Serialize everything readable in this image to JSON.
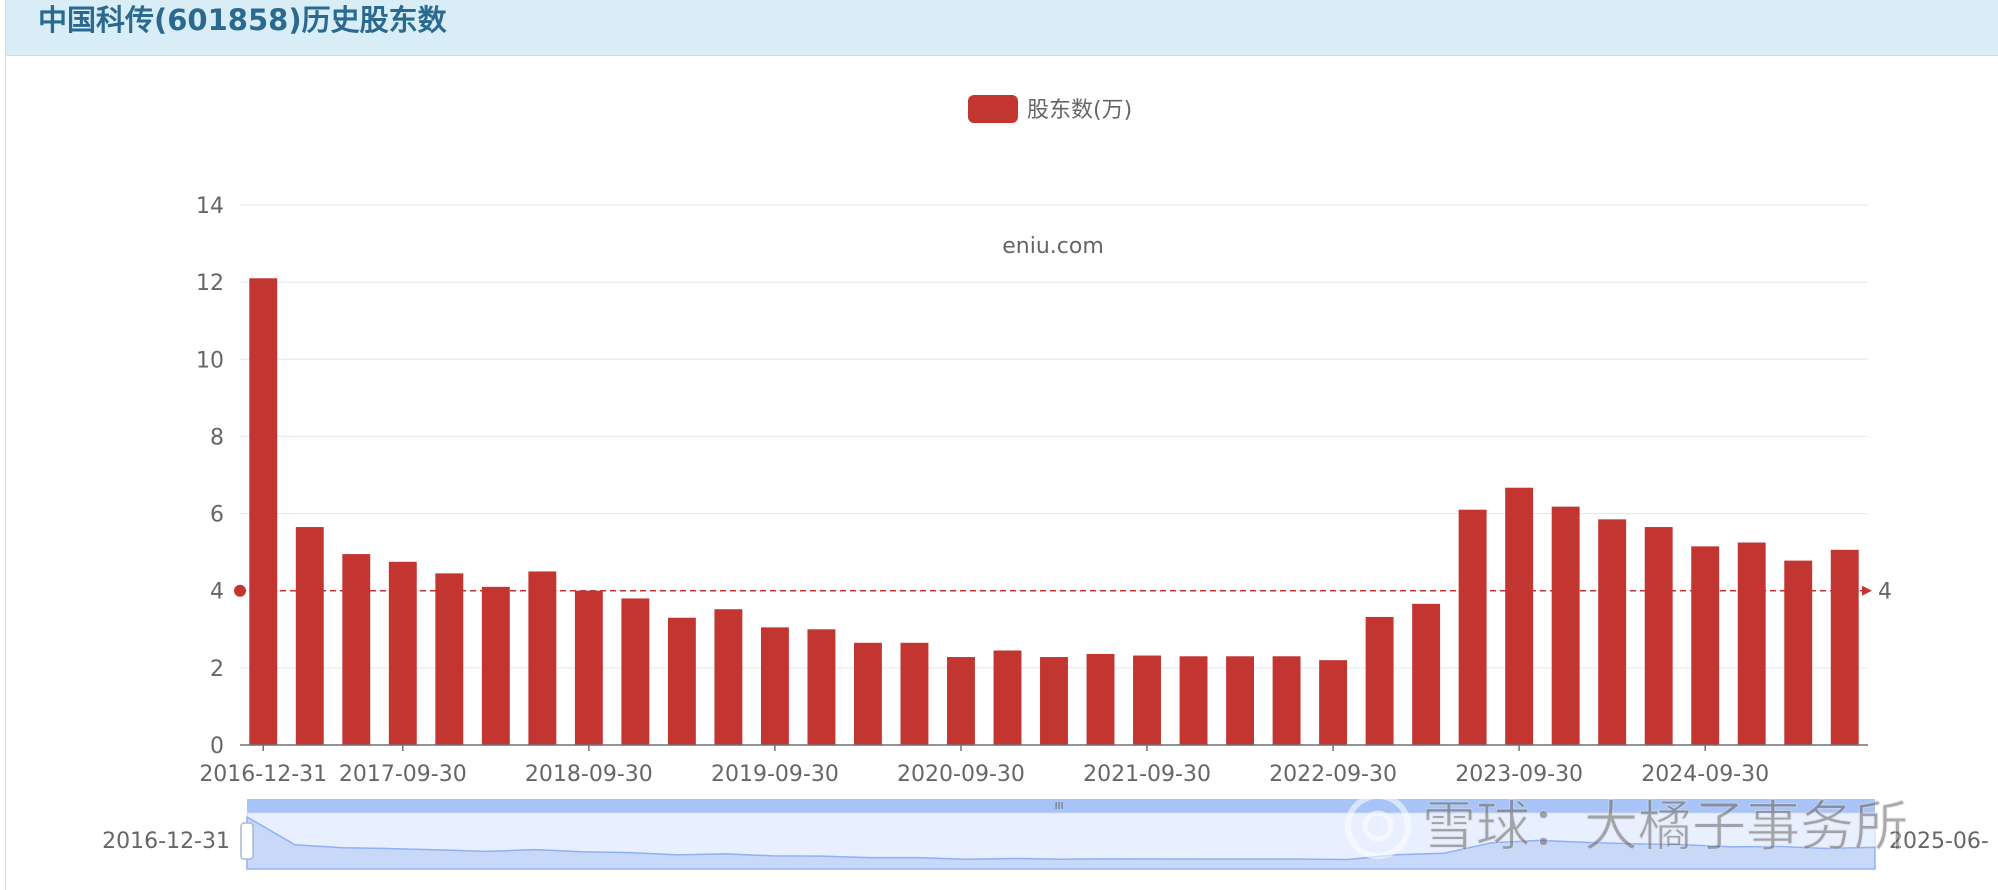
{
  "page": {
    "title": "中国科传(601858)历史股东数"
  },
  "chart_data": {
    "type": "bar",
    "legend": {
      "label": "股东数(万)",
      "color": "#c23531",
      "position": "top-center"
    },
    "watermark": "eniu.com",
    "categories": [
      "2016-12-31",
      "2017-03-31",
      "2017-06-30",
      "2017-09-30",
      "2017-12-31",
      "2018-03-31",
      "2018-06-30",
      "2018-09-30",
      "2018-12-31",
      "2019-03-31",
      "2019-06-30",
      "2019-09-30",
      "2019-12-31",
      "2020-03-31",
      "2020-06-30",
      "2020-09-30",
      "2020-12-31",
      "2021-03-31",
      "2021-06-30",
      "2021-09-30",
      "2021-12-31",
      "2022-03-31",
      "2022-06-30",
      "2022-09-30",
      "2022-12-31",
      "2023-03-31",
      "2023-06-30",
      "2023-09-30",
      "2023-12-31",
      "2024-03-31",
      "2024-06-30",
      "2024-09-30",
      "2024-12-31",
      "2025-03-31",
      "2025-06-30"
    ],
    "series": [
      {
        "name": "股东数(万)",
        "color": "#c23531",
        "values": [
          12.1,
          5.65,
          4.95,
          4.75,
          4.45,
          4.1,
          4.5,
          4.0,
          3.8,
          3.3,
          3.52,
          3.05,
          3.0,
          2.65,
          2.65,
          2.28,
          2.45,
          2.28,
          2.36,
          2.32,
          2.3,
          2.3,
          2.3,
          2.2,
          3.32,
          3.66,
          6.1,
          6.67,
          6.18,
          5.85,
          5.65,
          5.15,
          5.25,
          4.78,
          5.06
        ]
      }
    ],
    "x_tick_labels": [
      "2016-12-31",
      "2017-09-30",
      "2018-09-30",
      "2019-09-30",
      "2020-09-30",
      "2021-09-30",
      "2022-09-30",
      "2023-09-30",
      "2024-09-30"
    ],
    "ylim": [
      0,
      14
    ],
    "y_ticks": [
      0,
      2,
      4,
      6,
      8,
      10,
      12,
      14
    ],
    "grid": true,
    "mark_line": {
      "value": 4,
      "label": "4",
      "color": "#c23531",
      "style": "dashed"
    },
    "data_zoom": {
      "start_label": "2016-12-31",
      "end_label": "2025-06-",
      "handle_glyph": "III"
    }
  },
  "overlay": {
    "watermark_text": "雪球：大橘子事务所"
  }
}
